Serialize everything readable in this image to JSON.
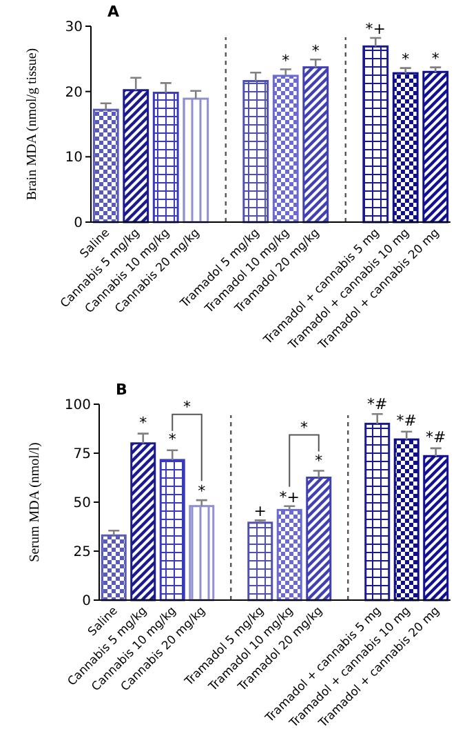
{
  "chart_data": [
    {
      "type": "bar",
      "title": "A",
      "ylabel": "Brain MDA (nmol/g tissue)",
      "categories": [
        "Saline",
        "Cannabis 5 mg/kg",
        "Cannabis 10 mg/kg",
        "Cannabis 20 mg/kg",
        null,
        "Tramadol 5 mg/kg",
        "Tramadol 10 mg/kg",
        "Tramadol 20 mg/kg",
        null,
        "Tramadol + cannabis 5 mg",
        "Tramadol + cannabis 10 mg",
        "Tramadol + cannabis 20 mg"
      ],
      "values": [
        17.2,
        20.2,
        19.8,
        18.9,
        null,
        21.6,
        22.4,
        23.7,
        null,
        26.9,
        22.8,
        23.0
      ],
      "errors": [
        1.0,
        1.9,
        1.5,
        1.2,
        null,
        1.3,
        1.0,
        1.2,
        null,
        1.3,
        0.8,
        0.7
      ],
      "colors": [
        "#5a5ab8",
        "#1a1a8c",
        "#3a3ac0",
        "#9090d0",
        null,
        "#5050b0",
        "#6a6ad0",
        "#4040b0",
        null,
        "#1a1a90",
        "#10108a",
        "#101090"
      ],
      "ylim": [
        0,
        30
      ],
      "yticks": [
        0,
        10,
        20,
        30
      ],
      "annotations": [
        {
          "text": "*",
          "x": "Tramadol 10 mg/kg",
          "y": 24.0
        },
        {
          "text": "*",
          "x": "Tramadol 20 mg/kg",
          "y": 25.5
        },
        {
          "text": "*+",
          "x": "Tramadol + cannabis 5 mg",
          "y": 28.8
        },
        {
          "text": "*",
          "x": "Tramadol + cannabis 10 mg",
          "y": 24.2
        },
        {
          "text": "*",
          "x": "Tramadol + cannabis 20 mg",
          "y": 24.3
        }
      ]
    },
    {
      "type": "bar",
      "title": "B",
      "ylabel": "Serum MDA (nmol/l)",
      "categories": [
        "Saline",
        "Cannabis 5 mg/kg",
        "Cannabis 10 mg/kg",
        "Cannabis 20 mg/kg",
        null,
        "Tramadol 5 mg/kg",
        "Tramadol 10 mg/kg",
        "Tramadol 20 mg/kg",
        null,
        "Tramadol + cannabis 5 mg",
        "Tramadol + cannabis 10 mg",
        "Tramadol + cannabis 20 mg"
      ],
      "values": [
        33,
        80,
        71.5,
        48,
        null,
        39.5,
        46,
        62.5,
        null,
        90,
        82,
        73.5
      ],
      "errors": [
        2.5,
        5,
        5,
        3,
        null,
        1.2,
        2,
        3.5,
        null,
        5,
        4,
        4
      ],
      "colors": [
        "#5a5ab8",
        "#1a1a8c",
        "#3a3ac0",
        "#9090d0",
        null,
        "#5050b0",
        "#6a6ad0",
        "#4040b0",
        null,
        "#1a1a90",
        "#10108a",
        "#101090"
      ],
      "ylim": [
        0,
        100
      ],
      "yticks": [
        0,
        25,
        50,
        75,
        100
      ],
      "annotations": [
        {
          "text": "*",
          "x": "Cannabis 5 mg/kg",
          "y": 88
        },
        {
          "text": "*",
          "x": "Cannabis 10 mg/kg",
          "y": 79.5
        },
        {
          "text": "*",
          "x": "Cannabis 20 mg/kg",
          "y": 53
        },
        "*",
        {
          "text": "+",
          "x": "Tramadol 5 mg/kg",
          "y": 43
        },
        {
          "text": "*+",
          "x": "Tramadol 10 mg/kg",
          "y": 50
        },
        {
          "text": "*",
          "x": "Tramadol 20 mg/kg",
          "y": 68.5
        },
        "*",
        {
          "text": "*#",
          "x": "Tramadol + cannabis 5 mg",
          "y": 97.5
        },
        {
          "text": "*#",
          "x": "Tramadol + cannabis 10 mg",
          "y": 89
        },
        {
          "text": "*#",
          "x": "Tramadol + cannabis 20 mg",
          "y": 80.5
        }
      ]
    }
  ]
}
